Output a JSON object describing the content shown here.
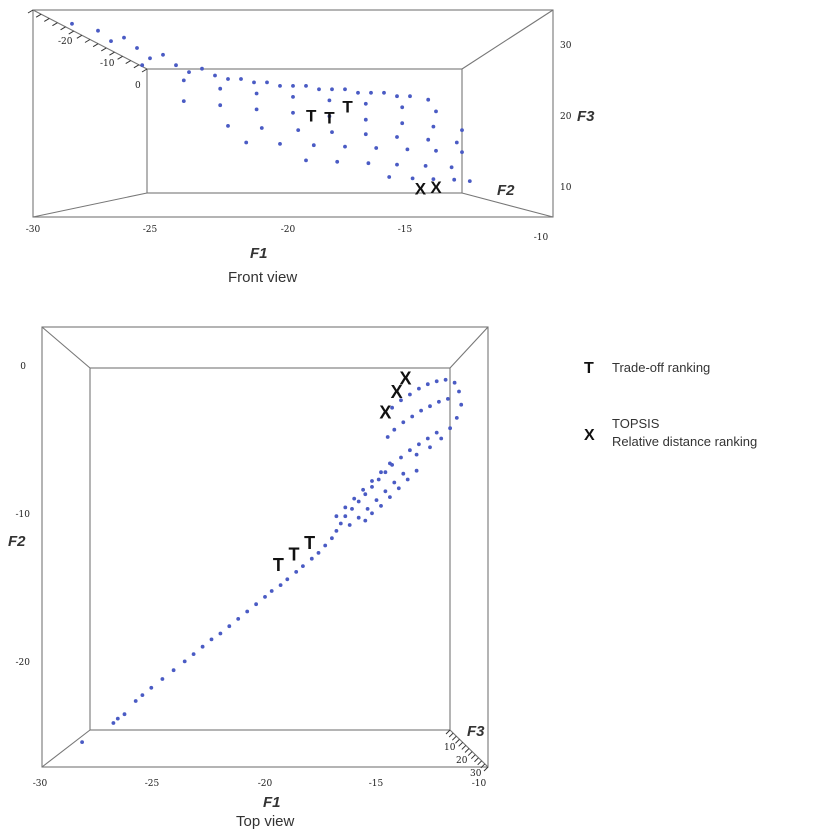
{
  "chart_data": [
    {
      "type": "scatter",
      "view": "front",
      "caption": "Front view",
      "xlabel": "F1",
      "ylabel": "F3",
      "depth_label": "F2",
      "x_ticks": [
        "-30",
        "-25",
        "-20",
        "-15",
        "-10"
      ],
      "y_ticks": [
        "10",
        "20",
        "30"
      ],
      "depth_ticks": [
        "-20",
        "-10",
        "0"
      ],
      "xlim": [
        -30,
        -10
      ],
      "ylim": [
        5,
        35
      ],
      "series": [
        {
          "values": [
            [
              -28.5,
              33
            ],
            [
              -27,
              30.5
            ],
            [
              -25.5,
              28
            ],
            [
              -24,
              26
            ],
            [
              -22.5,
              25
            ],
            [
              -21,
              24.5
            ],
            [
              -19.5,
              24
            ],
            [
              -18,
              23.5
            ],
            [
              -16.5,
              23
            ],
            [
              -27.5,
              32
            ],
            [
              -26,
              29.5
            ],
            [
              -24.5,
              27
            ],
            [
              -23,
              25.5
            ],
            [
              -21.5,
              24.5
            ],
            [
              -20,
              24
            ],
            [
              -18.5,
              23.5
            ],
            [
              -17,
              23
            ],
            [
              -15.5,
              22.5
            ],
            [
              -26.5,
              31
            ],
            [
              -25,
              28.5
            ],
            [
              -23.5,
              26.5
            ],
            [
              -22,
              25
            ],
            [
              -20.5,
              24
            ],
            [
              -19,
              23.5
            ],
            [
              -17.5,
              23
            ],
            [
              -16,
              22.5
            ],
            [
              -14.8,
              22
            ],
            [
              -25.8,
              27
            ],
            [
              -24.2,
              24.8
            ],
            [
              -22.8,
              23.6
            ],
            [
              -21.4,
              22.9
            ],
            [
              -20,
              22.4
            ],
            [
              -18.6,
              21.9
            ],
            [
              -17.2,
              21.4
            ],
            [
              -15.8,
              20.9
            ],
            [
              -14.5,
              20.3
            ],
            [
              -24.2,
              21.8
            ],
            [
              -22.8,
              21.2
            ],
            [
              -21.4,
              20.6
            ],
            [
              -20,
              20.1
            ],
            [
              -18.6,
              19.6
            ],
            [
              -17.2,
              19.1
            ],
            [
              -15.8,
              18.6
            ],
            [
              -14.6,
              18.1
            ],
            [
              -13.5,
              17.6
            ],
            [
              -22.5,
              18.2
            ],
            [
              -21.2,
              17.9
            ],
            [
              -19.8,
              17.6
            ],
            [
              -18.5,
              17.3
            ],
            [
              -17.2,
              17.0
            ],
            [
              -16,
              16.6
            ],
            [
              -14.8,
              16.2
            ],
            [
              -13.7,
              15.8
            ],
            [
              -21.8,
              15.8
            ],
            [
              -20.5,
              15.6
            ],
            [
              -19.2,
              15.4
            ],
            [
              -18,
              15.2
            ],
            [
              -16.8,
              15.0
            ],
            [
              -15.6,
              14.8
            ],
            [
              -14.5,
              14.6
            ],
            [
              -13.5,
              14.4
            ],
            [
              -19.5,
              13.2
            ],
            [
              -18.3,
              13.0
            ],
            [
              -17.1,
              12.8
            ],
            [
              -16,
              12.6
            ],
            [
              -14.9,
              12.4
            ],
            [
              -13.9,
              12.2
            ],
            [
              -16.3,
              10.8
            ],
            [
              -15.4,
              10.6
            ],
            [
              -14.6,
              10.5
            ],
            [
              -13.8,
              10.4
            ],
            [
              -13.2,
              10.2
            ]
          ]
        }
      ],
      "annotations": [
        {
          "label": "T",
          "x": -19.3,
          "y": 19.5
        },
        {
          "label": "T",
          "x": -18.6,
          "y": 19.2
        },
        {
          "label": "T",
          "x": -17.9,
          "y": 20.8
        },
        {
          "label": "X",
          "x": -15.1,
          "y": 8.9
        },
        {
          "label": "X",
          "x": -14.5,
          "y": 9.1
        }
      ]
    },
    {
      "type": "scatter",
      "view": "top",
      "caption": "Top view",
      "xlabel": "F1",
      "ylabel": "F2",
      "depth_label": "F3",
      "x_ticks": [
        "-30",
        "-25",
        "-20",
        "-15",
        "-10"
      ],
      "y_ticks": [
        "0",
        "-10",
        "-20"
      ],
      "depth_ticks": [
        "10",
        "20",
        "30"
      ],
      "xlim": [
        -30,
        -10
      ],
      "ylim": [
        -27,
        3
      ],
      "series": [
        {
          "values": [
            [
              -28.2,
              -25.3
            ],
            [
              -26.8,
              -24.0
            ],
            [
              -26.6,
              -23.7
            ],
            [
              -26.3,
              -23.4
            ],
            [
              -25.8,
              -22.5
            ],
            [
              -25.5,
              -22.1
            ],
            [
              -25.1,
              -21.6
            ],
            [
              -24.6,
              -21.0
            ],
            [
              -24.1,
              -20.4
            ],
            [
              -23.6,
              -19.8
            ],
            [
              -23.2,
              -19.3
            ],
            [
              -22.8,
              -18.8
            ],
            [
              -22.4,
              -18.3
            ],
            [
              -22.0,
              -17.9
            ],
            [
              -21.6,
              -17.4
            ],
            [
              -21.2,
              -16.9
            ],
            [
              -20.8,
              -16.4
            ],
            [
              -20.4,
              -15.9
            ],
            [
              -20.0,
              -15.4
            ],
            [
              -19.7,
              -15.0
            ],
            [
              -19.3,
              -14.6
            ],
            [
              -19.0,
              -14.2
            ],
            [
              -18.6,
              -13.7
            ],
            [
              -18.3,
              -13.3
            ],
            [
              -17.9,
              -12.8
            ],
            [
              -17.6,
              -12.4
            ],
            [
              -17.3,
              -11.9
            ],
            [
              -17.0,
              -11.4
            ],
            [
              -16.8,
              -10.9
            ],
            [
              -16.6,
              -10.4
            ],
            [
              -16.4,
              -9.9
            ],
            [
              -16.1,
              -9.4
            ],
            [
              -15.8,
              -8.9
            ],
            [
              -15.5,
              -8.4
            ],
            [
              -15.2,
              -7.9
            ],
            [
              -14.9,
              -7.4
            ],
            [
              -14.6,
              -6.9
            ],
            [
              -16.8,
              -9.9
            ],
            [
              -16.4,
              -9.3
            ],
            [
              -16.0,
              -8.7
            ],
            [
              -15.6,
              -8.1
            ],
            [
              -15.2,
              -7.5
            ],
            [
              -14.8,
              -6.9
            ],
            [
              -14.4,
              -6.3
            ],
            [
              -16.2,
              -10.5
            ],
            [
              -15.8,
              -10.0
            ],
            [
              -15.4,
              -9.4
            ],
            [
              -15.0,
              -8.8
            ],
            [
              -14.6,
              -8.2
            ],
            [
              -14.2,
              -7.6
            ],
            [
              -13.8,
              -7.0
            ],
            [
              -15.5,
              -10.2
            ],
            [
              -15.2,
              -9.7
            ],
            [
              -14.8,
              -9.2
            ],
            [
              -14.4,
              -8.6
            ],
            [
              -14.0,
              -8.0
            ],
            [
              -13.6,
              -7.4
            ],
            [
              -13.2,
              -6.8
            ],
            [
              -14.3,
              -6.4
            ],
            [
              -13.9,
              -5.9
            ],
            [
              -13.5,
              -5.4
            ],
            [
              -13.1,
              -5.0
            ],
            [
              -12.7,
              -4.6
            ],
            [
              -12.3,
              -4.2
            ],
            [
              -14.5,
              -4.5
            ],
            [
              -14.2,
              -4.0
            ],
            [
              -13.8,
              -3.5
            ],
            [
              -13.4,
              -3.1
            ],
            [
              -13.0,
              -2.7
            ],
            [
              -12.6,
              -2.4
            ],
            [
              -12.2,
              -2.1
            ],
            [
              -11.8,
              -1.9
            ],
            [
              -14.3,
              -2.5
            ],
            [
              -13.9,
              -2.0
            ],
            [
              -13.5,
              -1.6
            ],
            [
              -13.1,
              -1.2
            ],
            [
              -12.7,
              -0.9
            ],
            [
              -12.3,
              -0.7
            ],
            [
              -11.9,
              -0.6
            ],
            [
              -11.5,
              -0.8
            ],
            [
              -11.3,
              -1.4
            ],
            [
              -11.2,
              -2.3
            ],
            [
              -11.4,
              -3.2
            ],
            [
              -11.7,
              -3.9
            ],
            [
              -12.1,
              -4.6
            ],
            [
              -12.6,
              -5.2
            ],
            [
              -13.2,
              -5.7
            ]
          ]
        }
      ],
      "annotations": [
        {
          "label": "T",
          "x": -19.4,
          "y": -13.3
        },
        {
          "label": "T",
          "x": -18.7,
          "y": -12.6
        },
        {
          "label": "T",
          "x": -18.0,
          "y": -11.8
        },
        {
          "label": "X",
          "x": -14.6,
          "y": -2.9
        },
        {
          "label": "X",
          "x": -14.1,
          "y": -1.5
        },
        {
          "label": "X",
          "x": -13.7,
          "y": -0.6
        }
      ]
    }
  ],
  "legend": {
    "items": [
      {
        "symbol": "T",
        "lines": [
          "Trade-off ranking"
        ]
      },
      {
        "symbol": "X",
        "lines": [
          "TOPSIS",
          "Relative distance ranking"
        ]
      }
    ]
  },
  "colors": {
    "points": "#4a5bc4",
    "box": "#777777",
    "markers": "#111111"
  }
}
